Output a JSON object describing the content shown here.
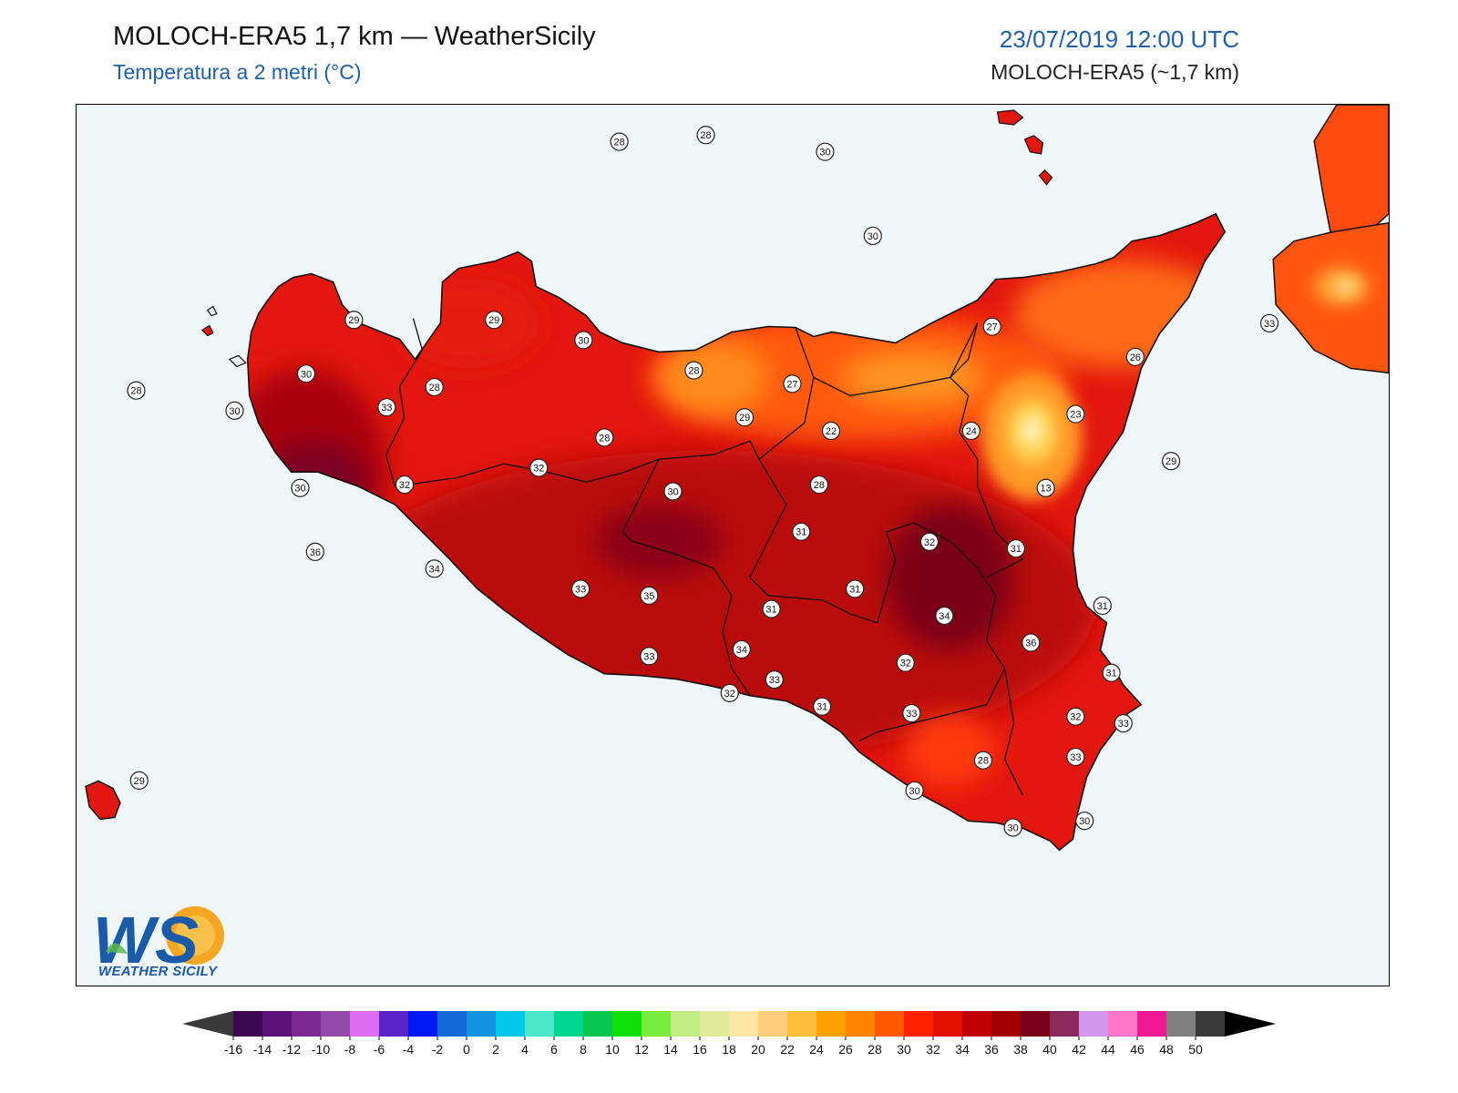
{
  "header": {
    "title": "MOLOCH-ERA5 1,7 km — WeatherSicily",
    "subtitle": "Temperatura a 2 metri (°C)",
    "datetime": "23/07/2019 12:00 UTC",
    "model": "MOLOCH-ERA5 (~1,7 km)"
  },
  "logo": {
    "letters": "WS",
    "text": "WEATHER SICILY"
  },
  "colors": {
    "sea": "#eef6fa",
    "land_base": "#e2170f",
    "hot": "#b90808",
    "very_hot": "#8a0412",
    "warm": "#ff4a10",
    "mild": "#ff8c1a",
    "cool": "#ffd050"
  },
  "colorbar": {
    "ticks": [
      "-16",
      "-14",
      "-12",
      "-10",
      "-8",
      "-6",
      "-4",
      "-2",
      "0",
      "2",
      "4",
      "6",
      "8",
      "10",
      "12",
      "14",
      "16",
      "18",
      "20",
      "22",
      "24",
      "26",
      "28",
      "30",
      "32",
      "34",
      "36",
      "38",
      "40",
      "42",
      "44",
      "46",
      "48",
      "50"
    ],
    "colors": [
      "#3d0a52",
      "#5a1077",
      "#7a2a92",
      "#9448a8",
      "#de6cf0",
      "#5b24c8",
      "#0018f0",
      "#1468d8",
      "#1494e0",
      "#00c8e6",
      "#4ae8c8",
      "#00d892",
      "#06c650",
      "#10e00a",
      "#78ec3c",
      "#c0ee84",
      "#e0ea98",
      "#ffe6a8",
      "#ffcc78",
      "#ffc03c",
      "#ffa200",
      "#ff8200",
      "#ff5a00",
      "#ff2200",
      "#e01000",
      "#c00000",
      "#a00000",
      "#780018",
      "#8a2858",
      "#d098f0",
      "#ff78c8",
      "#f01890",
      "#808080",
      "#3a3a3a"
    ]
  },
  "labels": [
    {
      "value": "28",
      "lon": 13.57,
      "lat": 38.71
    },
    {
      "value": "28",
      "lon": 13.86,
      "lat": 38.73
    },
    {
      "value": "30",
      "lon": 14.26,
      "lat": 38.68
    },
    {
      "value": "30",
      "lon": 14.42,
      "lat": 38.43
    },
    {
      "value": "29",
      "lon": 12.68,
      "lat": 38.18
    },
    {
      "value": "29",
      "lon": 13.15,
      "lat": 38.18
    },
    {
      "value": "30",
      "lon": 13.45,
      "lat": 38.12
    },
    {
      "value": "28",
      "lon": 13.82,
      "lat": 38.03
    },
    {
      "value": "27",
      "lon": 14.15,
      "lat": 37.99
    },
    {
      "value": "27",
      "lon": 14.82,
      "lat": 38.16
    },
    {
      "value": "26",
      "lon": 15.3,
      "lat": 38.07
    },
    {
      "value": "33",
      "lon": 15.75,
      "lat": 38.17
    },
    {
      "value": "30",
      "lon": 12.52,
      "lat": 38.02
    },
    {
      "value": "28",
      "lon": 12.95,
      "lat": 37.98
    },
    {
      "value": "33",
      "lon": 12.79,
      "lat": 37.92
    },
    {
      "value": "28",
      "lon": 11.95,
      "lat": 37.97
    },
    {
      "value": "30",
      "lon": 12.28,
      "lat": 37.91
    },
    {
      "value": "29",
      "lon": 13.99,
      "lat": 37.89
    },
    {
      "value": "22",
      "lon": 14.28,
      "lat": 37.85
    },
    {
      "value": "24",
      "lon": 14.75,
      "lat": 37.85
    },
    {
      "value": "23",
      "lon": 15.1,
      "lat": 37.9
    },
    {
      "value": "28",
      "lon": 13.52,
      "lat": 37.83
    },
    {
      "value": "32",
      "lon": 13.3,
      "lat": 37.74
    },
    {
      "value": "29",
      "lon": 15.42,
      "lat": 37.76
    },
    {
      "value": "30",
      "lon": 12.5,
      "lat": 37.68
    },
    {
      "value": "32",
      "lon": 12.85,
      "lat": 37.69
    },
    {
      "value": "13",
      "lon": 15.0,
      "lat": 37.68
    },
    {
      "value": "30",
      "lon": 13.75,
      "lat": 37.67
    },
    {
      "value": "28",
      "lon": 14.24,
      "lat": 37.69
    },
    {
      "value": "31",
      "lon": 14.18,
      "lat": 37.55
    },
    {
      "value": "32",
      "lon": 14.61,
      "lat": 37.52
    },
    {
      "value": "31",
      "lon": 14.9,
      "lat": 37.5
    },
    {
      "value": "36",
      "lon": 12.55,
      "lat": 37.49
    },
    {
      "value": "34",
      "lon": 12.95,
      "lat": 37.44
    },
    {
      "value": "33",
      "lon": 13.44,
      "lat": 37.38
    },
    {
      "value": "35",
      "lon": 13.67,
      "lat": 37.36
    },
    {
      "value": "31",
      "lon": 14.08,
      "lat": 37.32
    },
    {
      "value": "31",
      "lon": 14.36,
      "lat": 37.38
    },
    {
      "value": "34",
      "lon": 14.66,
      "lat": 37.3
    },
    {
      "value": "31",
      "lon": 15.19,
      "lat": 37.33
    },
    {
      "value": "36",
      "lon": 14.95,
      "lat": 37.22
    },
    {
      "value": "32",
      "lon": 14.53,
      "lat": 37.16
    },
    {
      "value": "33",
      "lon": 13.67,
      "lat": 37.18
    },
    {
      "value": "34",
      "lon": 13.98,
      "lat": 37.2
    },
    {
      "value": "33",
      "lon": 14.09,
      "lat": 37.11
    },
    {
      "value": "31",
      "lon": 15.22,
      "lat": 37.13
    },
    {
      "value": "32",
      "lon": 15.1,
      "lat": 37.0
    },
    {
      "value": "32",
      "lon": 13.94,
      "lat": 37.07
    },
    {
      "value": "31",
      "lon": 14.25,
      "lat": 37.03
    },
    {
      "value": "33",
      "lon": 14.55,
      "lat": 37.01
    },
    {
      "value": "33",
      "lon": 15.26,
      "lat": 36.98
    },
    {
      "value": "28",
      "lon": 14.79,
      "lat": 36.87
    },
    {
      "value": "33",
      "lon": 15.1,
      "lat": 36.88
    },
    {
      "value": "30",
      "lon": 14.56,
      "lat": 36.78
    },
    {
      "value": "29",
      "lon": 11.96,
      "lat": 36.81
    },
    {
      "value": "30",
      "lon": 14.89,
      "lat": 36.67
    },
    {
      "value": "30",
      "lon": 15.13,
      "lat": 36.69
    }
  ]
}
